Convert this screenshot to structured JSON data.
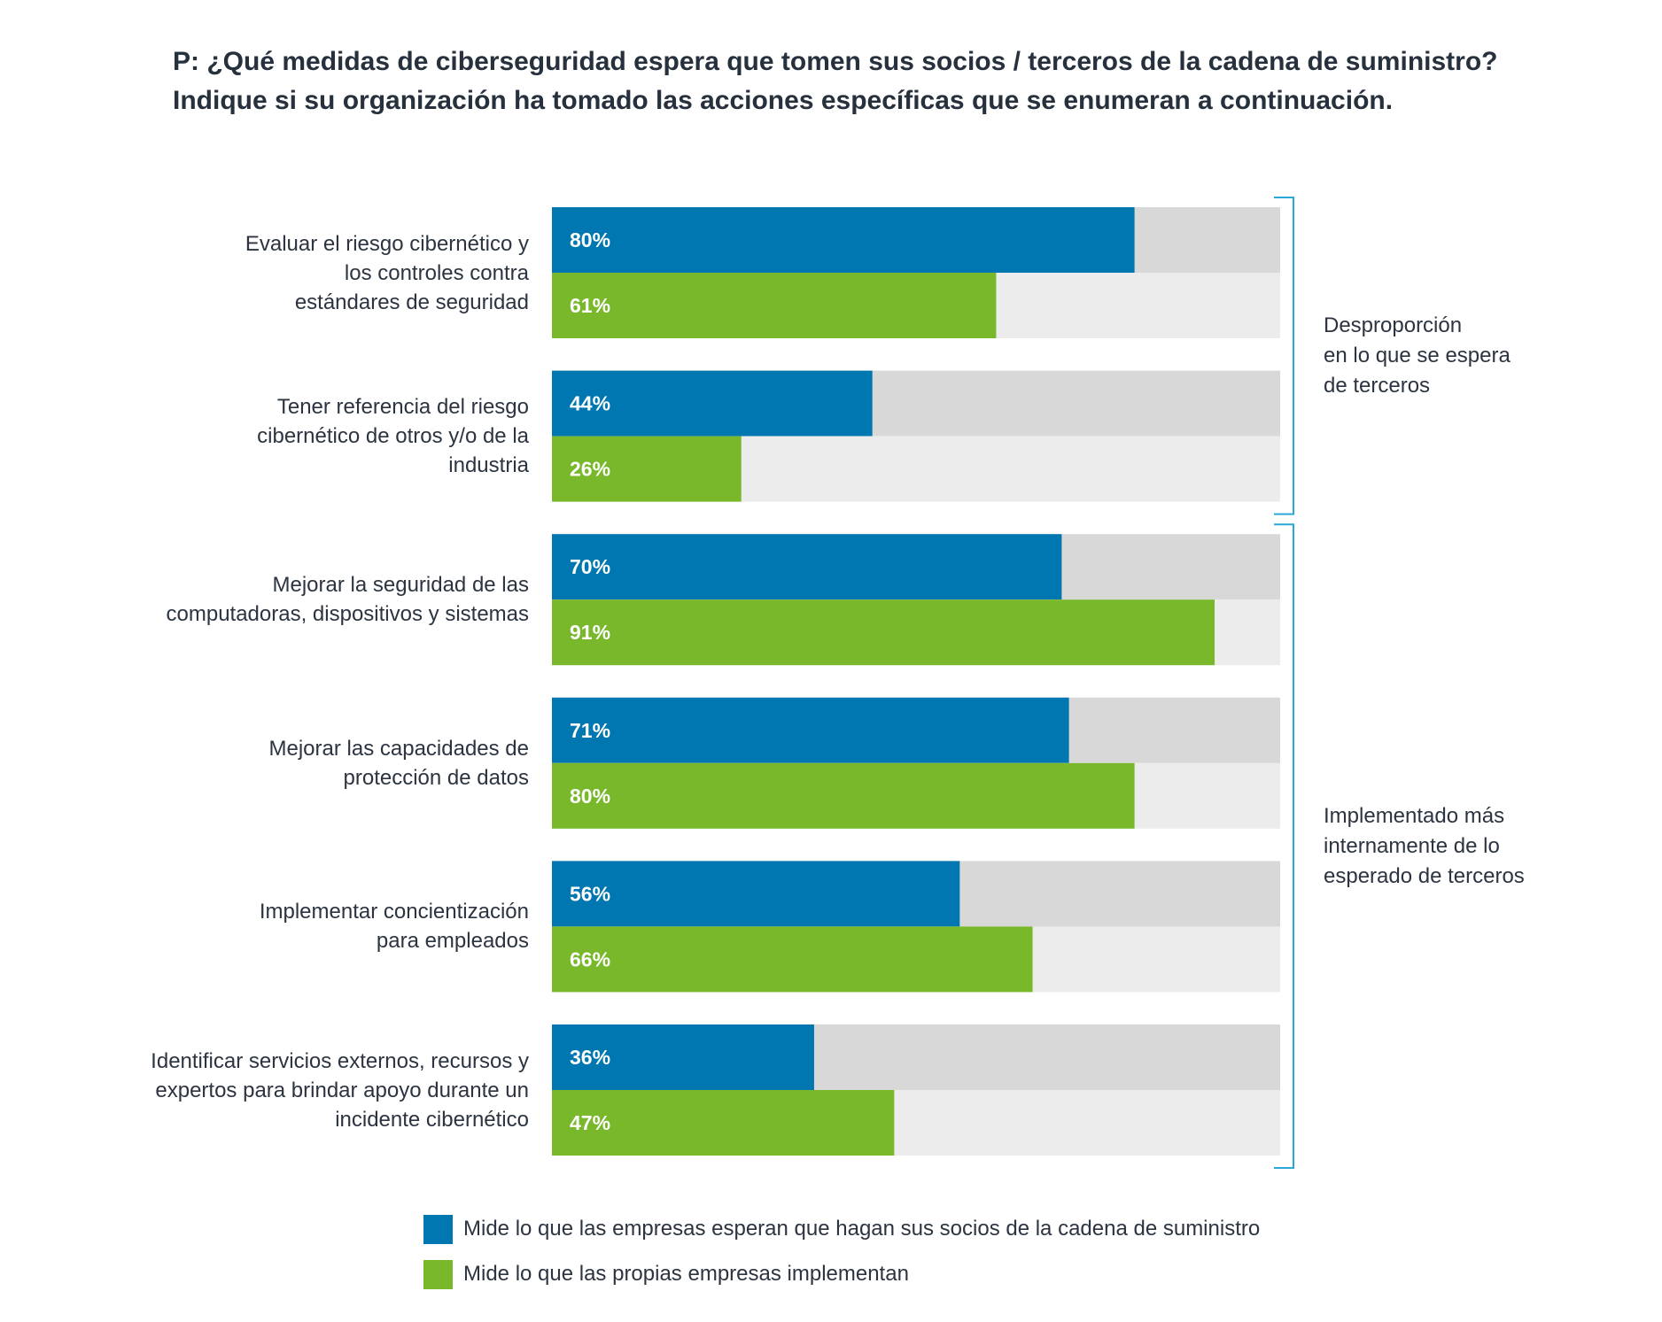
{
  "header": {
    "title_line1": "P: ¿Qué medidas de ciberseguridad espera que tomen sus socios / terceros de la cadena de suministro?",
    "title_line2": "Indique si su organización ha tomado las acciones específicas que se enumeran a continuación."
  },
  "colors": {
    "expected": "#0077b0",
    "implemented": "#78b82a",
    "track_expected": "#d8d8d8",
    "track_implemented": "#ececec",
    "bracket": "#2aa7d8",
    "value_label": "#ffffff"
  },
  "chart_data": {
    "type": "bar",
    "orientation": "horizontal",
    "xlim": [
      0,
      100
    ],
    "categories": [
      "Evaluar el riesgo cibernético y los controles contra estándares de seguridad",
      "Tener referencia del riesgo cibernético de otros y/o de la industria",
      "Mejorar la seguridad de las computadoras, dispositivos y sistemas",
      "Mejorar las capacidades de protección de datos",
      "Implementar concientización para empleados",
      "Identificar servicios externos, recursos y expertos para brindar apoyo durante un incidente cibernético"
    ],
    "category_lines": [
      [
        "Evaluar el riesgo cibernético y",
        "los controles contra",
        "estándares de seguridad"
      ],
      [
        "Tener referencia del riesgo",
        "cibernético de otros y/o de la",
        "industria"
      ],
      [
        "Mejorar la seguridad de las",
        "computadoras, dispositivos y sistemas"
      ],
      [
        "Mejorar las capacidades de",
        "protección de datos"
      ],
      [
        "Implementar concientización",
        "para empleados"
      ],
      [
        "Identificar servicios externos, recursos y",
        "expertos para brindar apoyo durante un",
        "incidente cibernético"
      ]
    ],
    "series": [
      {
        "name": "Mide lo que las empresas esperan que hagan sus socios de la cadena de suministro",
        "values": [
          80,
          44,
          70,
          71,
          56,
          36
        ],
        "labels": [
          "80%",
          "44%",
          "70%",
          "71%",
          "56%",
          "36%"
        ]
      },
      {
        "name": "Mide lo que las propias empresas implementan",
        "values": [
          61,
          26,
          91,
          80,
          66,
          47
        ],
        "labels": [
          "61%",
          "26%",
          "91%",
          "80%",
          "66%",
          "47%"
        ]
      }
    ],
    "brackets": [
      {
        "label_lines": [
          "Desproporción",
          "en lo que se espera",
          "de terceros"
        ],
        "from": 0,
        "to": 1
      },
      {
        "label_lines": [
          "Implementado más",
          "internamente de lo",
          "esperado de terceros"
        ],
        "from": 2,
        "to": 5
      }
    ],
    "legend_position": "bottom"
  }
}
